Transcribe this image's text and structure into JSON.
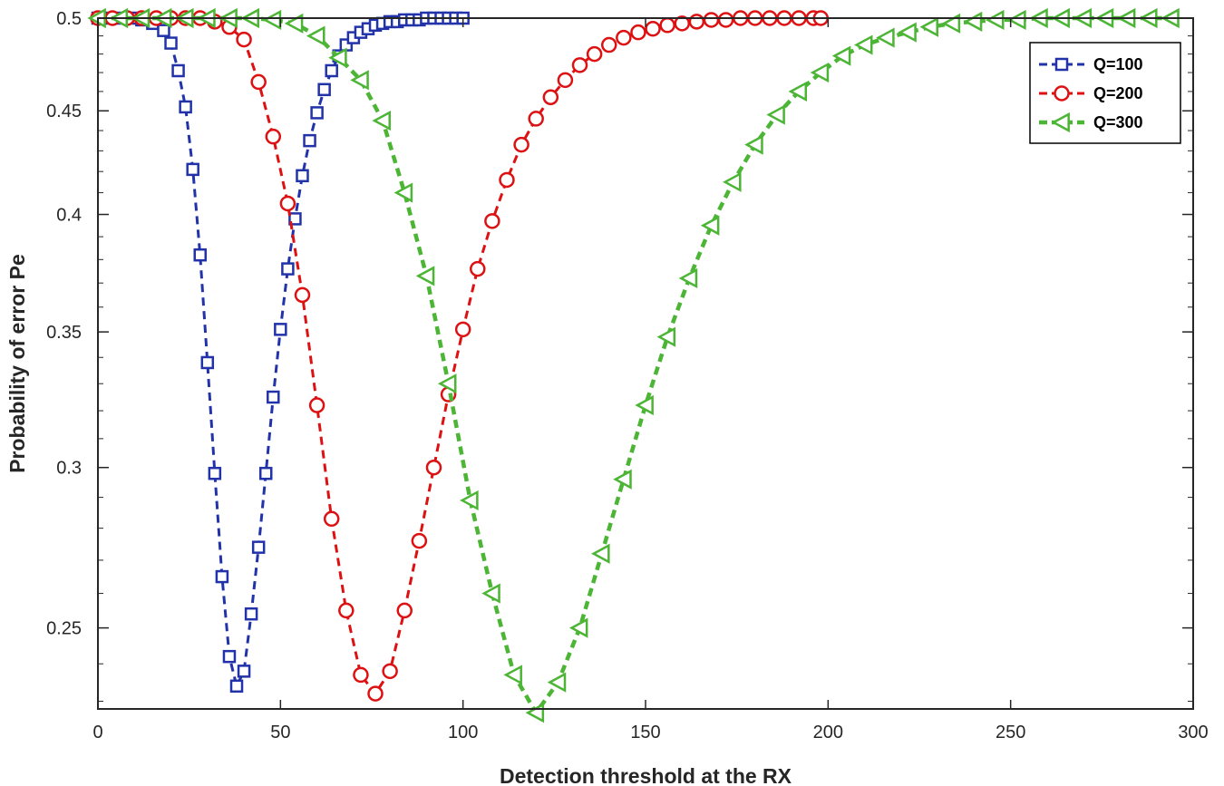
{
  "chart_data": {
    "type": "line",
    "title": "",
    "xlabel": "Detection threshold at the RX",
    "ylabel": "Probability of error Pe",
    "xlim": [
      0,
      300
    ],
    "ylim": [
      0.228,
      0.5
    ],
    "yscale": "log",
    "xticks": [
      0,
      50,
      100,
      150,
      200,
      250,
      300
    ],
    "xtick_labels": [
      "0",
      "50",
      "100",
      "150",
      "200",
      "250",
      "300"
    ],
    "yticks": [
      0.25,
      0.3,
      0.35,
      0.4,
      0.45,
      0.5
    ],
    "ytick_labels": [
      "0.25",
      "0.3",
      "0.35",
      "0.4",
      "0.45",
      "0.5"
    ],
    "grid": false,
    "legend_position": "top-right",
    "series": [
      {
        "name": "Q=100",
        "color": "#2233aa",
        "marker": "square",
        "x": [
          0,
          3,
          6,
          9,
          12,
          15,
          18,
          20,
          22,
          24,
          26,
          28,
          30,
          32,
          34,
          36,
          38,
          40,
          42,
          44,
          46,
          48,
          50,
          52,
          54,
          56,
          58,
          60,
          62,
          64,
          66,
          68,
          70,
          72,
          74,
          76,
          78,
          80,
          82,
          84,
          86,
          88,
          90,
          92,
          94,
          96,
          98,
          100
        ],
        "y": [
          0.5,
          0.5,
          0.5,
          0.5,
          0.499,
          0.497,
          0.493,
          0.486,
          0.471,
          0.452,
          0.421,
          0.382,
          0.338,
          0.298,
          0.265,
          0.242,
          0.234,
          0.238,
          0.254,
          0.274,
          0.298,
          0.325,
          0.351,
          0.376,
          0.398,
          0.418,
          0.435,
          0.449,
          0.461,
          0.471,
          0.479,
          0.485,
          0.489,
          0.492,
          0.494,
          0.496,
          0.497,
          0.498,
          0.498,
          0.499,
          0.499,
          0.499,
          0.5,
          0.5,
          0.5,
          0.5,
          0.5,
          0.5
        ]
      },
      {
        "name": "Q=200",
        "color": "#dd1111",
        "marker": "circle",
        "x": [
          0,
          4,
          8,
          12,
          16,
          20,
          24,
          28,
          32,
          36,
          40,
          44,
          48,
          52,
          56,
          60,
          64,
          68,
          72,
          76,
          80,
          84,
          88,
          92,
          96,
          100,
          104,
          108,
          112,
          116,
          120,
          124,
          128,
          132,
          136,
          140,
          144,
          148,
          152,
          156,
          160,
          164,
          168,
          172,
          176,
          180,
          184,
          188,
          192,
          196,
          198
        ],
        "y": [
          0.5,
          0.5,
          0.5,
          0.5,
          0.5,
          0.5,
          0.5,
          0.5,
          0.498,
          0.495,
          0.488,
          0.465,
          0.437,
          0.405,
          0.365,
          0.322,
          0.283,
          0.255,
          0.237,
          0.232,
          0.238,
          0.255,
          0.276,
          0.3,
          0.326,
          0.351,
          0.376,
          0.397,
          0.416,
          0.433,
          0.446,
          0.457,
          0.466,
          0.474,
          0.48,
          0.485,
          0.489,
          0.492,
          0.494,
          0.496,
          0.497,
          0.498,
          0.499,
          0.499,
          0.5,
          0.5,
          0.5,
          0.5,
          0.5,
          0.5,
          0.5
        ]
      },
      {
        "name": "Q=300",
        "color": "#4cb535",
        "marker": "triangle-left",
        "x": [
          0,
          6,
          12,
          18,
          24,
          30,
          36,
          42,
          48,
          54,
          60,
          66,
          72,
          78,
          84,
          90,
          96,
          102,
          108,
          114,
          120,
          126,
          132,
          138,
          144,
          150,
          156,
          162,
          168,
          174,
          180,
          186,
          192,
          198,
          204,
          210,
          216,
          222,
          228,
          234,
          240,
          246,
          252,
          258,
          264,
          270,
          276,
          282,
          288,
          294
        ],
        "y": [
          0.5,
          0.5,
          0.5,
          0.5,
          0.5,
          0.5,
          0.5,
          0.5,
          0.499,
          0.497,
          0.49,
          0.478,
          0.466,
          0.445,
          0.41,
          0.373,
          0.33,
          0.289,
          0.26,
          0.237,
          0.227,
          0.235,
          0.25,
          0.272,
          0.296,
          0.322,
          0.348,
          0.372,
          0.395,
          0.415,
          0.433,
          0.448,
          0.46,
          0.47,
          0.479,
          0.485,
          0.489,
          0.492,
          0.495,
          0.497,
          0.498,
          0.499,
          0.499,
          0.5,
          0.5,
          0.5,
          0.5,
          0.5,
          0.5,
          0.5
        ]
      }
    ]
  }
}
